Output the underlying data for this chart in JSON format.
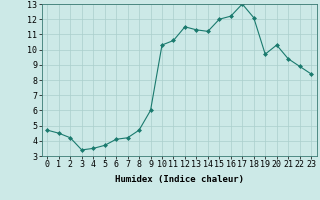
{
  "xlabel": "Humidex (Indice chaleur)",
  "ylabel": "",
  "x": [
    0,
    1,
    2,
    3,
    4,
    5,
    6,
    7,
    8,
    9,
    10,
    11,
    12,
    13,
    14,
    15,
    16,
    17,
    18,
    19,
    20,
    21,
    22,
    23
  ],
  "y": [
    4.7,
    4.5,
    4.2,
    3.4,
    3.5,
    3.7,
    4.1,
    4.2,
    4.7,
    6.0,
    10.3,
    10.6,
    11.5,
    11.3,
    11.2,
    12.0,
    12.2,
    13.0,
    12.1,
    9.7,
    10.3,
    9.4,
    8.9,
    8.4
  ],
  "line_color": "#1a7a6e",
  "marker": "D",
  "marker_size": 2.0,
  "bg_color": "#cce9e7",
  "grid_color": "#aacfcc",
  "ylim": [
    3,
    13
  ],
  "xlim": [
    -0.5,
    23.5
  ],
  "yticks": [
    3,
    4,
    5,
    6,
    7,
    8,
    9,
    10,
    11,
    12,
    13
  ],
  "xticks": [
    0,
    1,
    2,
    3,
    4,
    5,
    6,
    7,
    8,
    9,
    10,
    11,
    12,
    13,
    14,
    15,
    16,
    17,
    18,
    19,
    20,
    21,
    22,
    23
  ],
  "label_fontsize": 6.5,
  "tick_fontsize": 6.0
}
